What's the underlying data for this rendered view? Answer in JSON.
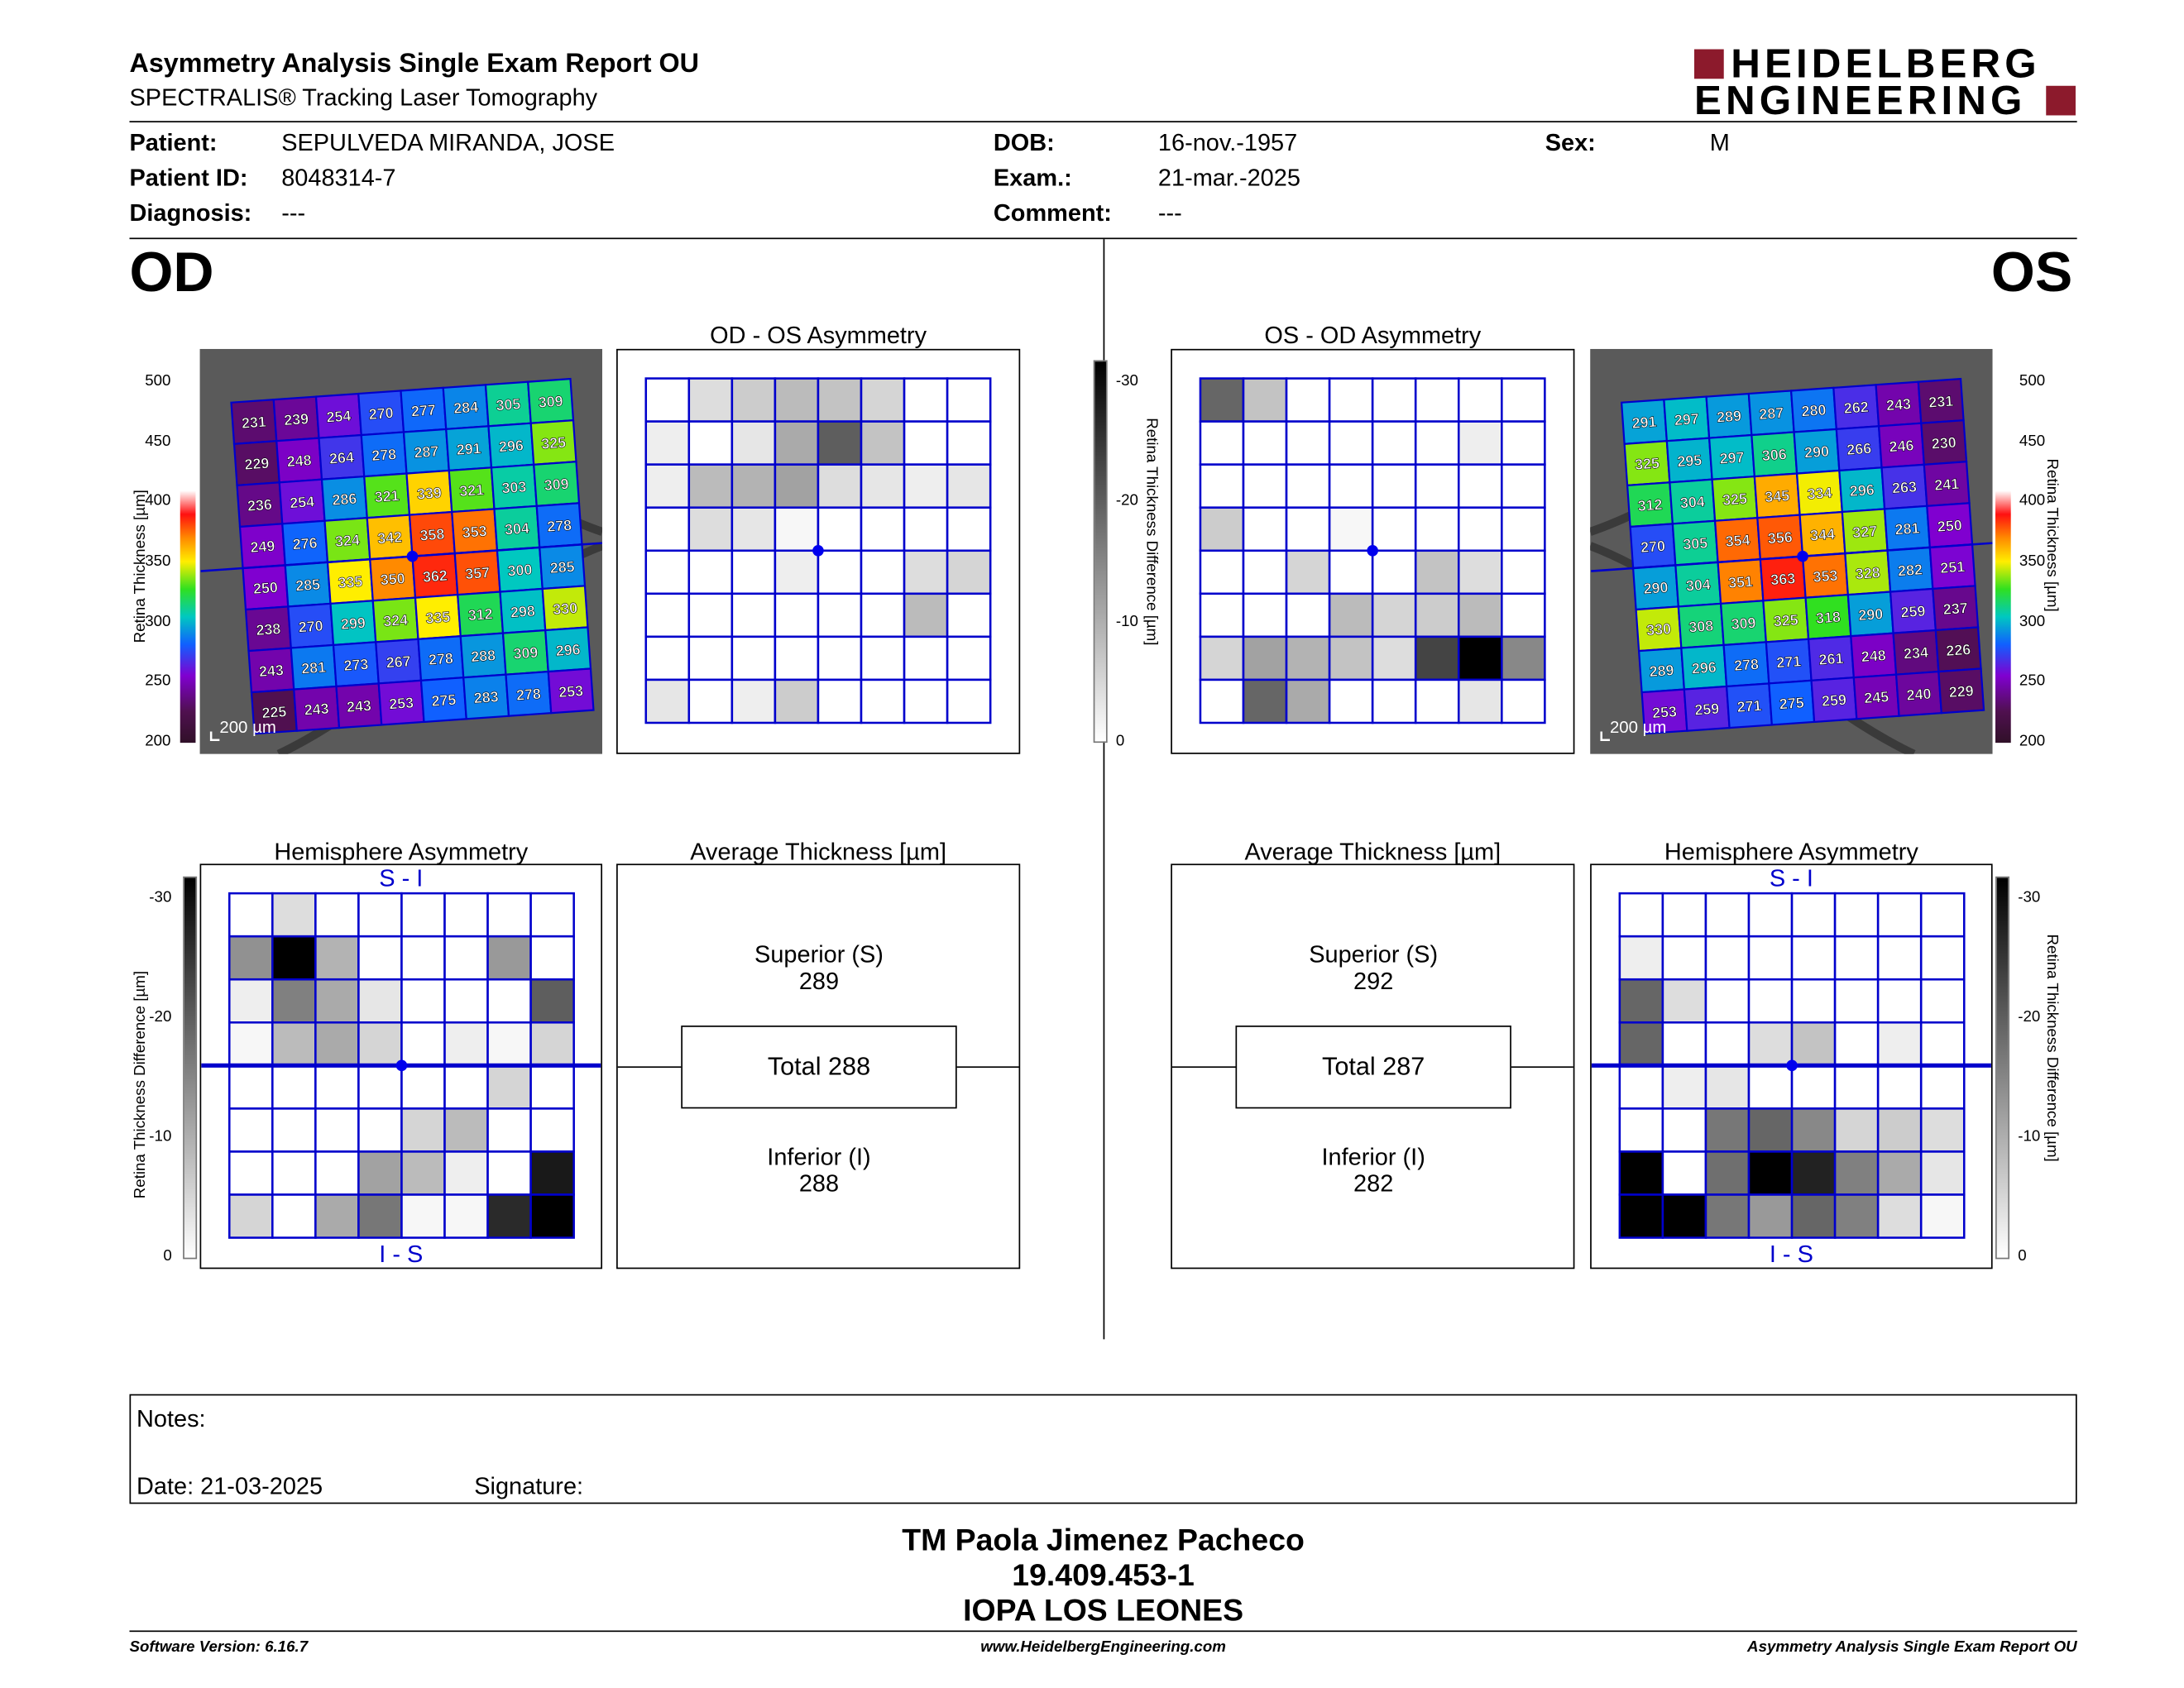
{
  "header": {
    "title": "Asymmetry Analysis Single Exam Report OU",
    "subtitle": "SPECTRALIS® Tracking Laser Tomography",
    "logo_line1": "HEIDELBERG",
    "logo_line2": "ENGINEERING",
    "logo_color": "#8c1a2c"
  },
  "patient": {
    "patient_label": "Patient:",
    "patient_value": "SEPULVEDA MIRANDA, JOSE",
    "id_label": "Patient ID:",
    "id_value": "8048314-7",
    "diagnosis_label": "Diagnosis:",
    "diagnosis_value": "---",
    "dob_label": "DOB:",
    "dob_value": "16-nov.-1957",
    "exam_label": "Exam.:",
    "exam_value": "21-mar.-2025",
    "comment_label": "Comment:",
    "comment_value": "---",
    "sex_label": "Sex:",
    "sex_value": "M"
  },
  "od": {
    "eye_label": "OD",
    "asym_title": "OD - OS Asymmetry",
    "hemi_title": "Hemisphere Asymmetry",
    "avg_title": "Average Thickness [µm]",
    "superior_label": "Superior (S)",
    "superior_value": "289",
    "total_label": "Total 288",
    "inferior_label": "Inferior (I)",
    "inferior_value": "288",
    "scale_label": "200 µm",
    "thickness_grid": [
      [
        231,
        239,
        254,
        270,
        277,
        284,
        305,
        309
      ],
      [
        229,
        248,
        264,
        278,
        287,
        291,
        296,
        325
      ],
      [
        236,
        254,
        286,
        321,
        339,
        321,
        303,
        309
      ],
      [
        249,
        276,
        324,
        342,
        358,
        353,
        304,
        278
      ],
      [
        250,
        285,
        335,
        350,
        362,
        357,
        300,
        285
      ],
      [
        238,
        270,
        299,
        324,
        335,
        312,
        298,
        330
      ],
      [
        243,
        281,
        273,
        267,
        278,
        288,
        309,
        296
      ],
      [
        225,
        243,
        243,
        253,
        275,
        283,
        278,
        253
      ]
    ],
    "asym_grid": [
      [
        0,
        4,
        6,
        8,
        7,
        5,
        0,
        0
      ],
      [
        2,
        0,
        3,
        10,
        19,
        7,
        0,
        0
      ],
      [
        2,
        8,
        9,
        11,
        4,
        3,
        2,
        3
      ],
      [
        0,
        4,
        3,
        1,
        0,
        0,
        0,
        0
      ],
      [
        0,
        0,
        0,
        2,
        0,
        0,
        4,
        5
      ],
      [
        0,
        0,
        0,
        0,
        0,
        0,
        8,
        0
      ],
      [
        0,
        0,
        0,
        0,
        0,
        0,
        0,
        0
      ],
      [
        3,
        0,
        2,
        6,
        0,
        0,
        0,
        0
      ]
    ],
    "hemi_grid": [
      [
        0,
        4,
        0,
        0,
        0,
        0,
        0,
        0
      ],
      [
        13,
        30,
        9,
        0,
        0,
        0,
        12,
        0
      ],
      [
        2,
        15,
        10,
        3,
        0,
        0,
        0,
        19
      ],
      [
        1,
        8,
        10,
        5,
        0,
        2,
        1,
        5
      ],
      [
        0,
        0,
        0,
        0,
        0,
        0,
        5,
        0
      ],
      [
        0,
        0,
        0,
        0,
        5,
        8,
        0,
        0
      ],
      [
        0,
        0,
        0,
        11,
        8,
        2,
        0,
        27
      ],
      [
        5,
        0,
        10,
        16,
        1,
        1,
        25,
        30
      ]
    ]
  },
  "os": {
    "eye_label": "OS",
    "asym_title": "OS - OD Asymmetry",
    "hemi_title": "Hemisphere Asymmetry",
    "avg_title": "Average Thickness [µm]",
    "superior_label": "Superior (S)",
    "superior_value": "292",
    "total_label": "Total 287",
    "inferior_label": "Inferior (I)",
    "inferior_value": "282",
    "scale_label": "200 µm",
    "thickness_grid": [
      [
        291,
        297,
        289,
        287,
        280,
        262,
        243,
        231
      ],
      [
        325,
        295,
        297,
        306,
        290,
        266,
        246,
        230
      ],
      [
        312,
        304,
        325,
        345,
        334,
        296,
        263,
        241
      ],
      [
        270,
        305,
        354,
        356,
        344,
        327,
        281,
        250
      ],
      [
        290,
        304,
        351,
        363,
        353,
        328,
        282,
        251
      ],
      [
        330,
        308,
        309,
        325,
        318,
        290,
        259,
        237
      ],
      [
        289,
        296,
        278,
        271,
        261,
        248,
        234,
        226
      ],
      [
        253,
        259,
        271,
        275,
        259,
        245,
        240,
        229
      ]
    ],
    "asym_grid": [
      [
        18,
        7,
        0,
        0,
        0,
        0,
        0,
        0
      ],
      [
        0,
        0,
        0,
        0,
        0,
        0,
        2,
        0
      ],
      [
        0,
        0,
        0,
        0,
        0,
        0,
        0,
        0
      ],
      [
        6,
        0,
        0,
        1,
        0,
        0,
        0,
        0
      ],
      [
        0,
        0,
        5,
        0,
        0,
        7,
        4,
        0
      ],
      [
        0,
        0,
        0,
        8,
        5,
        6,
        8,
        0
      ],
      [
        5,
        11,
        9,
        7,
        4,
        22,
        30,
        14
      ],
      [
        0,
        18,
        10,
        0,
        0,
        0,
        3,
        0
      ]
    ],
    "hemi_grid": [
      [
        0,
        0,
        0,
        0,
        0,
        0,
        0,
        0
      ],
      [
        2,
        0,
        0,
        0,
        0,
        0,
        0,
        0
      ],
      [
        18,
        4,
        0,
        0,
        0,
        0,
        0,
        0
      ],
      [
        18,
        0,
        0,
        4,
        7,
        0,
        2,
        0
      ],
      [
        0,
        2,
        3,
        0,
        0,
        0,
        0,
        0
      ],
      [
        0,
        0,
        16,
        18,
        14,
        5,
        6,
        4
      ],
      [
        30,
        0,
        17,
        30,
        26,
        15,
        10,
        3
      ],
      [
        30,
        30,
        16,
        12,
        18,
        15,
        4,
        1
      ]
    ]
  },
  "legend": {
    "thickness_label": "Retina Thickness [µm]",
    "thickness_ticks": [
      "500",
      "450",
      "400",
      "350",
      "300",
      "250",
      "200"
    ],
    "diff_label": "Retina Thickness Difference [µm]",
    "diff_ticks": [
      "-30",
      "-20",
      "-10",
      "0"
    ],
    "hemi_top": "S - I",
    "hemi_bottom": "I - S"
  },
  "colors": {
    "grid_blue": "#0000cc",
    "fovea_dot": "#0000ee"
  },
  "notes": {
    "notes_label": "Notes:",
    "date_label": "Date: 21-03-2025",
    "signature_label": "Signature:"
  },
  "signature_block": {
    "name": "TM Paola Jimenez Pacheco",
    "rut": "19.409.453-1",
    "institution": "IOPA LOS LEONES"
  },
  "footer": {
    "software": "Software Version: 6.16.7",
    "website": "www.HeidelbergEngineering.com",
    "report": "Asymmetry Analysis Single Exam Report OU"
  }
}
